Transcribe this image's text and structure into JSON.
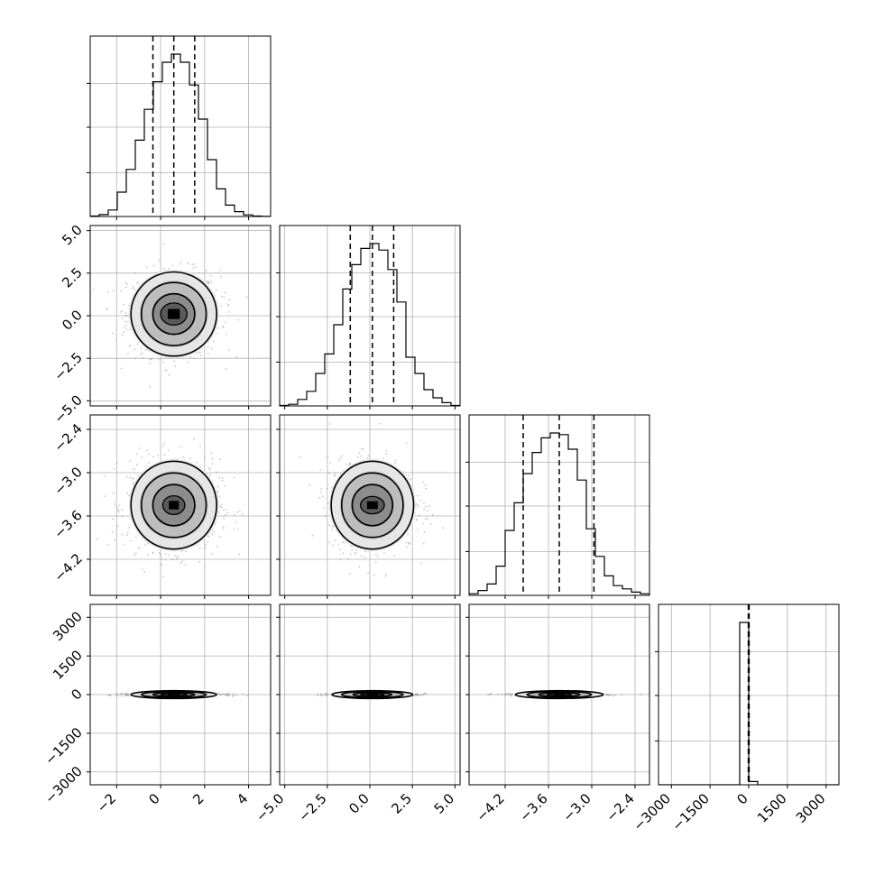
{
  "chart_data": {
    "type": "corner",
    "grid": true,
    "parameters": [
      {
        "range": [
          -3.2,
          5.0
        ],
        "ticks": [
          -2,
          0,
          2,
          4
        ],
        "tick_labels": [
          "−2",
          "0",
          "2",
          "4"
        ],
        "hist": {
          "bins": [
            -3.2,
            -2.79,
            -2.38,
            -1.97,
            -1.56,
            -1.15,
            -0.74,
            -0.33,
            0.08,
            0.49,
            0.9,
            1.31,
            1.72,
            2.13,
            2.54,
            2.95,
            3.36,
            3.77,
            4.18,
            4.59,
            5.0
          ],
          "counts": [
            0.003,
            0.012,
            0.04,
            0.15,
            0.29,
            0.47,
            0.66,
            0.83,
            0.95,
            1.0,
            0.95,
            0.81,
            0.6,
            0.35,
            0.17,
            0.07,
            0.03,
            0.01,
            0.003,
            0.001
          ]
        },
        "quantiles": [
          -0.35,
          0.6,
          1.55
        ]
      },
      {
        "range": [
          -5.3,
          5.3
        ],
        "ticks": [
          -5.0,
          -2.5,
          0.0,
          2.5,
          5.0
        ],
        "tick_labels": [
          "−5.0",
          "−2.5",
          "0.0",
          "2.5",
          "5.0"
        ],
        "hist": {
          "bins": [
            -5.3,
            -4.77,
            -4.24,
            -3.71,
            -3.18,
            -2.65,
            -2.12,
            -1.59,
            -1.06,
            -0.53,
            0.0,
            0.53,
            1.06,
            1.59,
            2.12,
            2.65,
            3.18,
            3.71,
            4.24,
            4.77,
            5.3
          ],
          "counts": [
            0.003,
            0.01,
            0.04,
            0.09,
            0.2,
            0.32,
            0.5,
            0.72,
            0.87,
            0.97,
            1.0,
            0.96,
            0.84,
            0.64,
            0.3,
            0.2,
            0.1,
            0.05,
            0.02,
            0.003
          ]
        },
        "quantiles": [
          -1.15,
          0.15,
          1.4
        ]
      },
      {
        "range": [
          -4.7,
          -2.2
        ],
        "ticks": [
          -4.2,
          -3.6,
          -3.0,
          -2.4
        ],
        "tick_labels": [
          "−4.2",
          "−3.6",
          "−3.0",
          "−2.4"
        ],
        "hist": {
          "bins": [
            -4.7,
            -4.575,
            -4.45,
            -4.325,
            -4.2,
            -4.075,
            -3.95,
            -3.825,
            -3.7,
            -3.575,
            -3.45,
            -3.325,
            -3.2,
            -3.075,
            -2.95,
            -2.825,
            -2.7,
            -2.575,
            -2.45,
            -2.325,
            -2.2
          ],
          "counts": [
            0.01,
            0.03,
            0.07,
            0.18,
            0.4,
            0.57,
            0.75,
            0.88,
            0.97,
            1.0,
            0.99,
            0.9,
            0.71,
            0.41,
            0.24,
            0.12,
            0.06,
            0.04,
            0.02,
            0.01
          ]
        },
        "quantiles": [
          -3.95,
          -3.45,
          -2.97
        ]
      },
      {
        "range": [
          -3500,
          3500
        ],
        "ticks": [
          -3000,
          -1500,
          0,
          1500,
          3000
        ],
        "tick_labels": [
          "−3000",
          "−1500",
          "0",
          "1500",
          "3000"
        ],
        "hist": {
          "bins": [
            -3500,
            -3150,
            -2800,
            -2450,
            -2100,
            -1750,
            -1400,
            -1050,
            -700,
            -350,
            0,
            350,
            700,
            1050,
            1400,
            1750,
            2100,
            2450,
            2800,
            3150,
            3500
          ],
          "counts": [
            0,
            0,
            0,
            0,
            0,
            0,
            0,
            0,
            0,
            1.0,
            0.02,
            0,
            0,
            0,
            0,
            0,
            0,
            0,
            0,
            0
          ]
        },
        "quantiles": [
          -15,
          0,
          15
        ]
      }
    ],
    "pairs": {
      "1-0": {
        "mean": [
          0.6,
          0.1
        ],
        "sd": [
          1.0,
          1.2
        ],
        "rx": [
          0.6,
          1.0,
          1.55,
          2.05
        ],
        "ry": [
          0.65,
          1.25,
          1.95,
          2.6
        ],
        "den": [
          0.55,
          0.75,
          0.9
        ]
      },
      "2-0": {
        "mean": [
          0.6,
          -3.45
        ],
        "sd": [
          1.0,
          0.3
        ],
        "rx": [
          0.5,
          1.0,
          1.55,
          2.05
        ],
        "ry": [
          0.13,
          0.3,
          0.47,
          0.64
        ],
        "den": [
          0.55,
          0.75,
          0.9
        ]
      },
      "2-1": {
        "mean": [
          0.15,
          -3.45
        ],
        "sd": [
          1.2,
          0.3
        ],
        "rx": [
          0.7,
          1.25,
          1.9,
          2.55
        ],
        "ry": [
          0.12,
          0.3,
          0.47,
          0.64
        ],
        "den": [
          0.55,
          0.75,
          0.9
        ]
      },
      "3-0": {
        "mean": [
          0.6,
          0.0
        ],
        "sd": [
          1.0,
          25.0
        ],
        "rx": [
          0.6,
          1.0,
          1.55,
          2.05
        ],
        "ry": [
          45,
          85,
          130,
          160
        ],
        "den": [
          0.6,
          0.8,
          0.92
        ]
      },
      "3-1": {
        "mean": [
          0.15,
          0.0
        ],
        "sd": [
          1.2,
          25.0
        ],
        "rx": [
          0.7,
          1.2,
          1.9,
          2.5
        ],
        "ry": [
          45,
          85,
          130,
          160
        ],
        "den": [
          0.6,
          0.8,
          0.92
        ]
      },
      "3-2": {
        "mean": [
          -3.45,
          0.0
        ],
        "sd": [
          0.3,
          25.0
        ],
        "rx": [
          0.17,
          0.3,
          0.47,
          0.64
        ],
        "ry": [
          45,
          85,
          130,
          160
        ],
        "den": [
          0.6,
          0.8,
          0.92
        ]
      }
    }
  }
}
